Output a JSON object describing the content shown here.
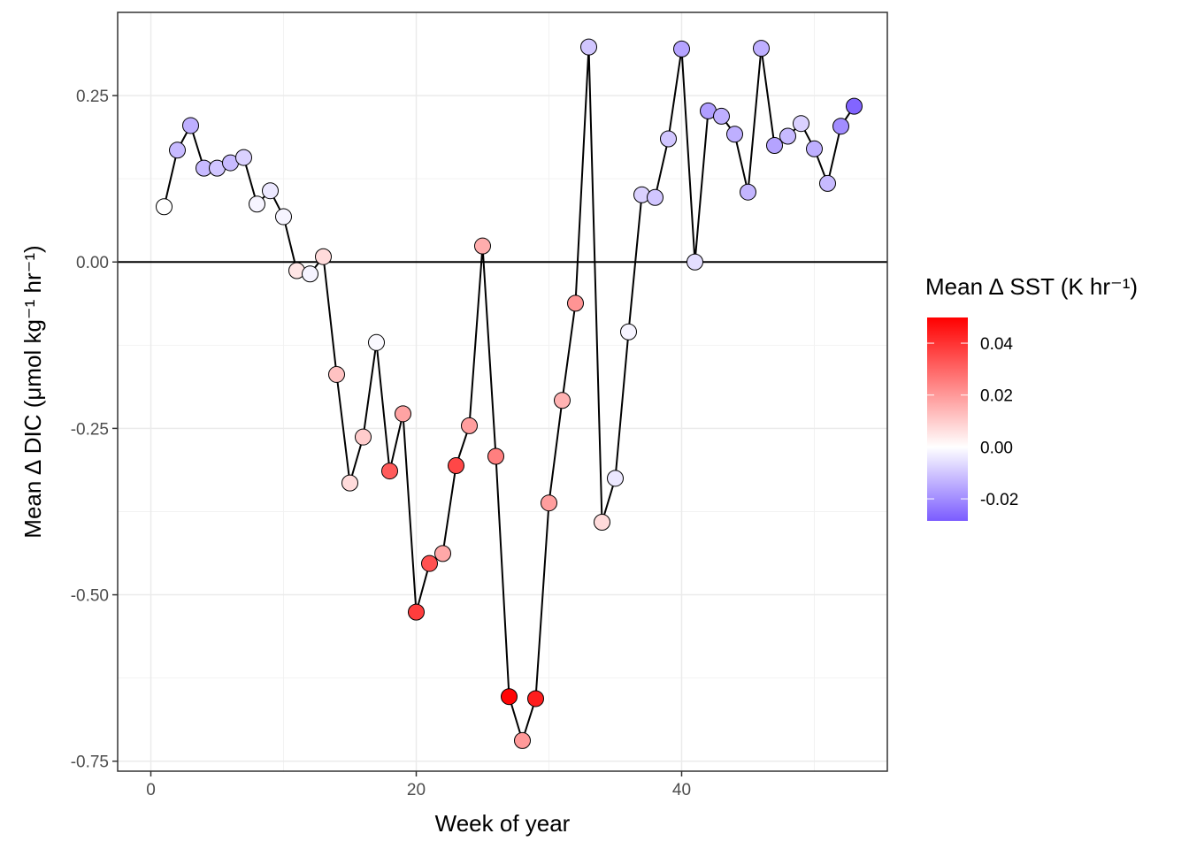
{
  "chart_data": {
    "type": "scatter",
    "xlabel": "Week of year",
    "ylabel": "Mean ∆ DIC (μmol kg⁻¹ hr⁻¹)",
    "xlim": [
      -2.5,
      55.5
    ],
    "ylim": [
      -0.765,
      0.375
    ],
    "x_ticks": [
      0,
      20,
      40
    ],
    "x_tick_labels": [
      "0",
      "20",
      "40"
    ],
    "y_ticks": [
      0.25,
      0.0,
      -0.25,
      -0.5,
      -0.75
    ],
    "y_tick_labels": [
      "0.25",
      "0.00",
      "-0.25",
      "-0.50",
      "-0.75"
    ],
    "grid": true,
    "hline_y": 0,
    "series": [
      {
        "points": [
          {
            "x": 1,
            "y": 0.083,
            "c": 0.0
          },
          {
            "x": 2,
            "y": 0.168,
            "c": -0.012
          },
          {
            "x": 3,
            "y": 0.205,
            "c": -0.014
          },
          {
            "x": 4,
            "y": 0.141,
            "c": -0.012
          },
          {
            "x": 5,
            "y": 0.141,
            "c": -0.01
          },
          {
            "x": 6,
            "y": 0.149,
            "c": -0.012
          },
          {
            "x": 7,
            "y": 0.157,
            "c": -0.008
          },
          {
            "x": 8,
            "y": 0.087,
            "c": -0.002
          },
          {
            "x": 9,
            "y": 0.107,
            "c": -0.004
          },
          {
            "x": 10,
            "y": 0.068,
            "c": -0.002
          },
          {
            "x": 11,
            "y": -0.013,
            "c": 0.005
          },
          {
            "x": 12,
            "y": -0.018,
            "c": -0.002
          },
          {
            "x": 13,
            "y": 0.008,
            "c": 0.007
          },
          {
            "x": 14,
            "y": -0.169,
            "c": 0.012
          },
          {
            "x": 15,
            "y": -0.332,
            "c": 0.007
          },
          {
            "x": 16,
            "y": -0.263,
            "c": 0.01
          },
          {
            "x": 17,
            "y": -0.121,
            "c": -0.001
          },
          {
            "x": 18,
            "y": -0.314,
            "c": 0.032
          },
          {
            "x": 19,
            "y": -0.228,
            "c": 0.018
          },
          {
            "x": 20,
            "y": -0.526,
            "c": 0.038
          },
          {
            "x": 21,
            "y": -0.453,
            "c": 0.034
          },
          {
            "x": 22,
            "y": -0.438,
            "c": 0.017
          },
          {
            "x": 23,
            "y": -0.306,
            "c": 0.036
          },
          {
            "x": 24,
            "y": -0.246,
            "c": 0.019
          },
          {
            "x": 25,
            "y": 0.024,
            "c": 0.016
          },
          {
            "x": 26,
            "y": -0.292,
            "c": 0.025
          },
          {
            "x": 27,
            "y": -0.653,
            "c": 0.049
          },
          {
            "x": 28,
            "y": -0.719,
            "c": 0.02
          },
          {
            "x": 29,
            "y": -0.656,
            "c": 0.044
          },
          {
            "x": 30,
            "y": -0.362,
            "c": 0.019
          },
          {
            "x": 31,
            "y": -0.208,
            "c": 0.015
          },
          {
            "x": 32,
            "y": -0.062,
            "c": 0.021
          },
          {
            "x": 33,
            "y": 0.323,
            "c": -0.01
          },
          {
            "x": 34,
            "y": -0.391,
            "c": 0.007
          },
          {
            "x": 35,
            "y": -0.325,
            "c": -0.004
          },
          {
            "x": 36,
            "y": -0.105,
            "c": -0.002
          },
          {
            "x": 37,
            "y": 0.101,
            "c": -0.008
          },
          {
            "x": 38,
            "y": 0.097,
            "c": -0.01
          },
          {
            "x": 39,
            "y": 0.185,
            "c": -0.01
          },
          {
            "x": 40,
            "y": 0.32,
            "c": -0.016
          },
          {
            "x": 41,
            "y": 0.0,
            "c": -0.006
          },
          {
            "x": 42,
            "y": 0.227,
            "c": -0.017
          },
          {
            "x": 43,
            "y": 0.219,
            "c": -0.014
          },
          {
            "x": 44,
            "y": 0.192,
            "c": -0.014
          },
          {
            "x": 45,
            "y": 0.105,
            "c": -0.013
          },
          {
            "x": 46,
            "y": 0.321,
            "c": -0.014
          },
          {
            "x": 47,
            "y": 0.175,
            "c": -0.016
          },
          {
            "x": 48,
            "y": 0.189,
            "c": -0.012
          },
          {
            "x": 49,
            "y": 0.208,
            "c": -0.008
          },
          {
            "x": 50,
            "y": 0.17,
            "c": -0.014
          },
          {
            "x": 51,
            "y": 0.118,
            "c": -0.012
          },
          {
            "x": 52,
            "y": 0.204,
            "c": -0.02
          },
          {
            "x": 53,
            "y": 0.234,
            "c": -0.027
          }
        ]
      }
    ],
    "colorbar": {
      "title": "Mean ∆ SST (K hr⁻¹)",
      "range": [
        -0.0285,
        0.0499
      ],
      "ticks": [
        0.04,
        0.02,
        0.0,
        -0.02
      ],
      "tick_labels": [
        "0.04",
        "0.02",
        "0.00",
        "-0.02"
      ],
      "low_color": "#7B5CFF",
      "mid_color": "#FFFFFF",
      "high_color": "#FF0000",
      "mid_value": 0
    }
  }
}
